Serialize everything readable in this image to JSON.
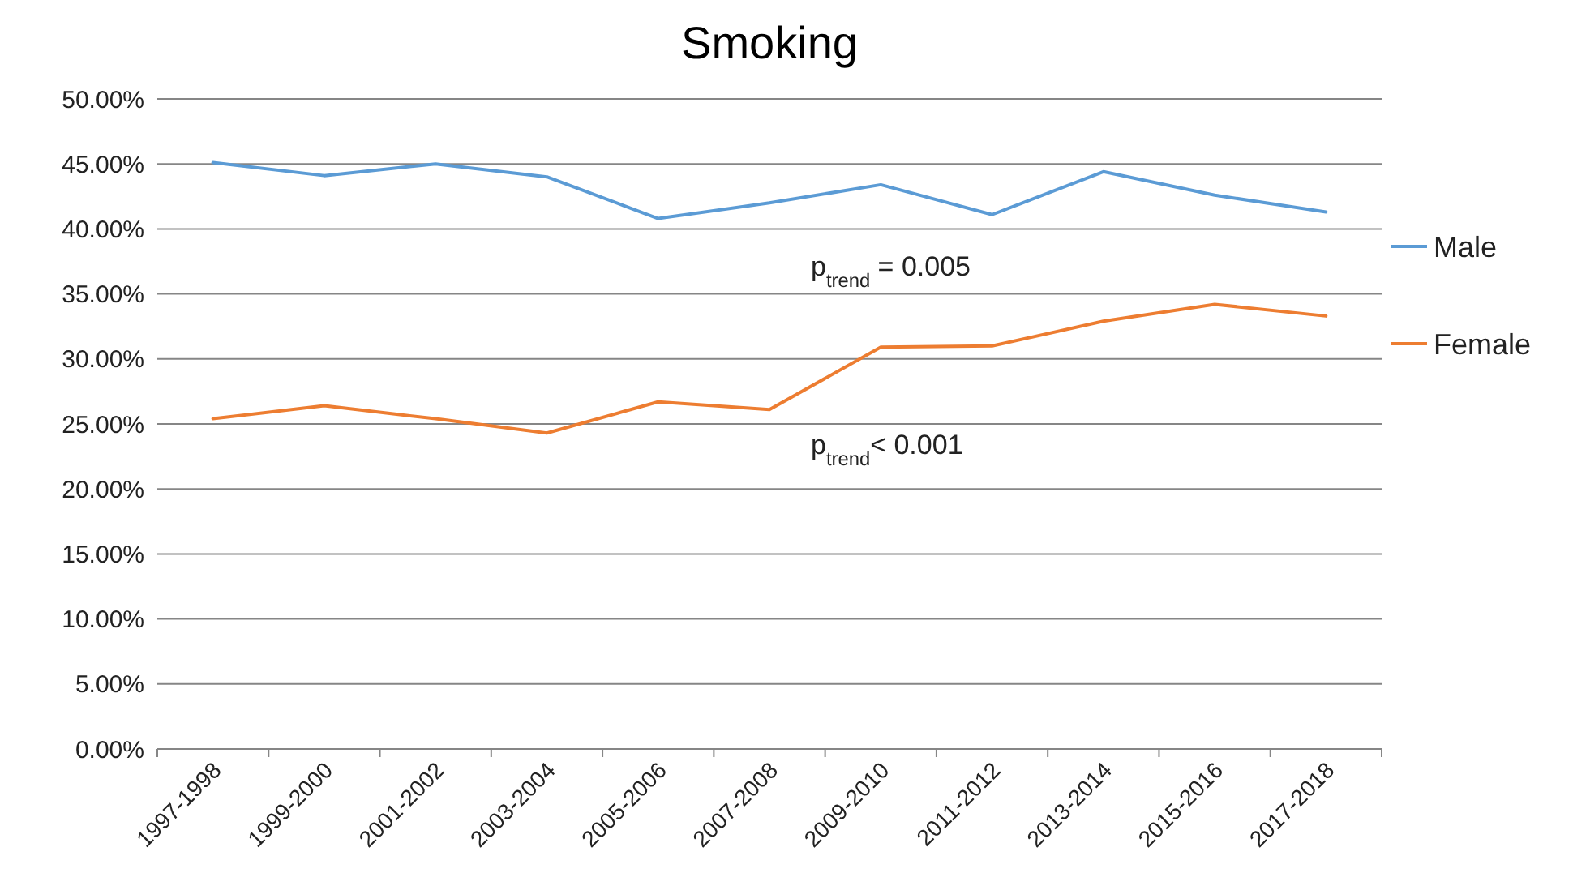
{
  "chart_data": {
    "type": "line",
    "title": "Smoking",
    "categories": [
      "1997-1998",
      "1999-2000",
      "2001-2002",
      "2003-2004",
      "2005-2006",
      "2007-2008",
      "2009-2010",
      "2011-2012",
      "2013-2014",
      "2015-2016",
      "2017-2018"
    ],
    "series": [
      {
        "name": "Male",
        "color": "#5b9bd5",
        "values": [
          45.1,
          44.1,
          45.0,
          44.0,
          40.8,
          42.0,
          43.4,
          41.1,
          44.4,
          42.6,
          41.3
        ]
      },
      {
        "name": "Female",
        "color": "#ed7d31",
        "values": [
          25.4,
          26.4,
          25.4,
          24.3,
          26.7,
          26.1,
          30.9,
          31.0,
          32.9,
          34.2,
          33.3
        ]
      }
    ],
    "ylim": [
      0,
      50
    ],
    "yticks": [
      {
        "value": 0,
        "label": "0.00%"
      },
      {
        "value": 5,
        "label": "5.00%"
      },
      {
        "value": 10,
        "label": "10.00%"
      },
      {
        "value": 15,
        "label": "15.00%"
      },
      {
        "value": 20,
        "label": "20.00%"
      },
      {
        "value": 25,
        "label": "25.00%"
      },
      {
        "value": 30,
        "label": "30.00%"
      },
      {
        "value": 35,
        "label": "35.00%"
      },
      {
        "value": 40,
        "label": "40.00%"
      },
      {
        "value": 45,
        "label": "45.00%"
      },
      {
        "value": 50,
        "label": "50.00%"
      }
    ],
    "grid": "y",
    "legend": "right",
    "marker": "none",
    "line_style": "solid",
    "annotations": [
      "p$_{trend}$ = 0.005",
      "p$_{trend}$< 0.001"
    ]
  }
}
